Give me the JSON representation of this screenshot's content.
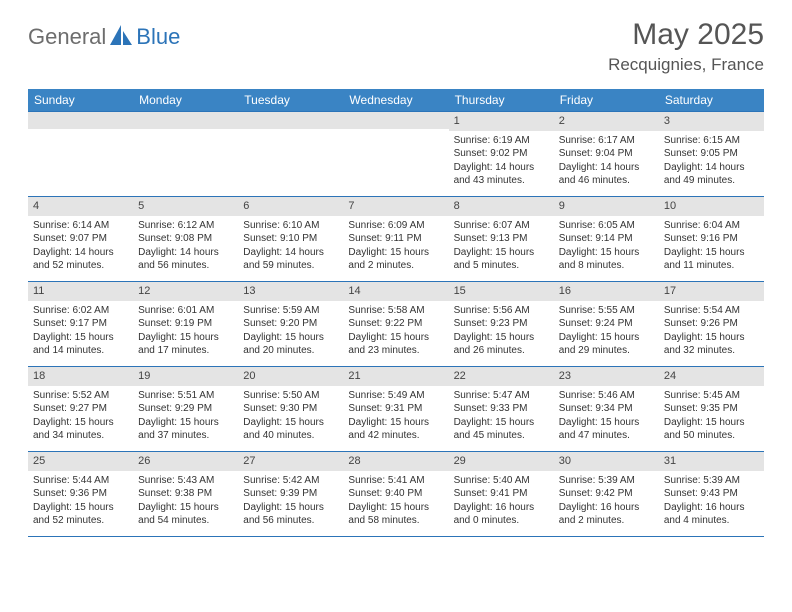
{
  "brand": {
    "part1": "General",
    "part2": "Blue"
  },
  "title": "May 2025",
  "location": "Recquignies, France",
  "accent_color": "#3a84c4",
  "rule_color": "#2c74b8",
  "band_color": "#e4e4e4",
  "weekdays": [
    "Sunday",
    "Monday",
    "Tuesday",
    "Wednesday",
    "Thursday",
    "Friday",
    "Saturday"
  ],
  "weeks": [
    [
      {
        "n": "",
        "sr": "",
        "ss": "",
        "d1": "",
        "d2": ""
      },
      {
        "n": "",
        "sr": "",
        "ss": "",
        "d1": "",
        "d2": ""
      },
      {
        "n": "",
        "sr": "",
        "ss": "",
        "d1": "",
        "d2": ""
      },
      {
        "n": "",
        "sr": "",
        "ss": "",
        "d1": "",
        "d2": ""
      },
      {
        "n": "1",
        "sr": "Sunrise: 6:19 AM",
        "ss": "Sunset: 9:02 PM",
        "d1": "Daylight: 14 hours",
        "d2": "and 43 minutes."
      },
      {
        "n": "2",
        "sr": "Sunrise: 6:17 AM",
        "ss": "Sunset: 9:04 PM",
        "d1": "Daylight: 14 hours",
        "d2": "and 46 minutes."
      },
      {
        "n": "3",
        "sr": "Sunrise: 6:15 AM",
        "ss": "Sunset: 9:05 PM",
        "d1": "Daylight: 14 hours",
        "d2": "and 49 minutes."
      }
    ],
    [
      {
        "n": "4",
        "sr": "Sunrise: 6:14 AM",
        "ss": "Sunset: 9:07 PM",
        "d1": "Daylight: 14 hours",
        "d2": "and 52 minutes."
      },
      {
        "n": "5",
        "sr": "Sunrise: 6:12 AM",
        "ss": "Sunset: 9:08 PM",
        "d1": "Daylight: 14 hours",
        "d2": "and 56 minutes."
      },
      {
        "n": "6",
        "sr": "Sunrise: 6:10 AM",
        "ss": "Sunset: 9:10 PM",
        "d1": "Daylight: 14 hours",
        "d2": "and 59 minutes."
      },
      {
        "n": "7",
        "sr": "Sunrise: 6:09 AM",
        "ss": "Sunset: 9:11 PM",
        "d1": "Daylight: 15 hours",
        "d2": "and 2 minutes."
      },
      {
        "n": "8",
        "sr": "Sunrise: 6:07 AM",
        "ss": "Sunset: 9:13 PM",
        "d1": "Daylight: 15 hours",
        "d2": "and 5 minutes."
      },
      {
        "n": "9",
        "sr": "Sunrise: 6:05 AM",
        "ss": "Sunset: 9:14 PM",
        "d1": "Daylight: 15 hours",
        "d2": "and 8 minutes."
      },
      {
        "n": "10",
        "sr": "Sunrise: 6:04 AM",
        "ss": "Sunset: 9:16 PM",
        "d1": "Daylight: 15 hours",
        "d2": "and 11 minutes."
      }
    ],
    [
      {
        "n": "11",
        "sr": "Sunrise: 6:02 AM",
        "ss": "Sunset: 9:17 PM",
        "d1": "Daylight: 15 hours",
        "d2": "and 14 minutes."
      },
      {
        "n": "12",
        "sr": "Sunrise: 6:01 AM",
        "ss": "Sunset: 9:19 PM",
        "d1": "Daylight: 15 hours",
        "d2": "and 17 minutes."
      },
      {
        "n": "13",
        "sr": "Sunrise: 5:59 AM",
        "ss": "Sunset: 9:20 PM",
        "d1": "Daylight: 15 hours",
        "d2": "and 20 minutes."
      },
      {
        "n": "14",
        "sr": "Sunrise: 5:58 AM",
        "ss": "Sunset: 9:22 PM",
        "d1": "Daylight: 15 hours",
        "d2": "and 23 minutes."
      },
      {
        "n": "15",
        "sr": "Sunrise: 5:56 AM",
        "ss": "Sunset: 9:23 PM",
        "d1": "Daylight: 15 hours",
        "d2": "and 26 minutes."
      },
      {
        "n": "16",
        "sr": "Sunrise: 5:55 AM",
        "ss": "Sunset: 9:24 PM",
        "d1": "Daylight: 15 hours",
        "d2": "and 29 minutes."
      },
      {
        "n": "17",
        "sr": "Sunrise: 5:54 AM",
        "ss": "Sunset: 9:26 PM",
        "d1": "Daylight: 15 hours",
        "d2": "and 32 minutes."
      }
    ],
    [
      {
        "n": "18",
        "sr": "Sunrise: 5:52 AM",
        "ss": "Sunset: 9:27 PM",
        "d1": "Daylight: 15 hours",
        "d2": "and 34 minutes."
      },
      {
        "n": "19",
        "sr": "Sunrise: 5:51 AM",
        "ss": "Sunset: 9:29 PM",
        "d1": "Daylight: 15 hours",
        "d2": "and 37 minutes."
      },
      {
        "n": "20",
        "sr": "Sunrise: 5:50 AM",
        "ss": "Sunset: 9:30 PM",
        "d1": "Daylight: 15 hours",
        "d2": "and 40 minutes."
      },
      {
        "n": "21",
        "sr": "Sunrise: 5:49 AM",
        "ss": "Sunset: 9:31 PM",
        "d1": "Daylight: 15 hours",
        "d2": "and 42 minutes."
      },
      {
        "n": "22",
        "sr": "Sunrise: 5:47 AM",
        "ss": "Sunset: 9:33 PM",
        "d1": "Daylight: 15 hours",
        "d2": "and 45 minutes."
      },
      {
        "n": "23",
        "sr": "Sunrise: 5:46 AM",
        "ss": "Sunset: 9:34 PM",
        "d1": "Daylight: 15 hours",
        "d2": "and 47 minutes."
      },
      {
        "n": "24",
        "sr": "Sunrise: 5:45 AM",
        "ss": "Sunset: 9:35 PM",
        "d1": "Daylight: 15 hours",
        "d2": "and 50 minutes."
      }
    ],
    [
      {
        "n": "25",
        "sr": "Sunrise: 5:44 AM",
        "ss": "Sunset: 9:36 PM",
        "d1": "Daylight: 15 hours",
        "d2": "and 52 minutes."
      },
      {
        "n": "26",
        "sr": "Sunrise: 5:43 AM",
        "ss": "Sunset: 9:38 PM",
        "d1": "Daylight: 15 hours",
        "d2": "and 54 minutes."
      },
      {
        "n": "27",
        "sr": "Sunrise: 5:42 AM",
        "ss": "Sunset: 9:39 PM",
        "d1": "Daylight: 15 hours",
        "d2": "and 56 minutes."
      },
      {
        "n": "28",
        "sr": "Sunrise: 5:41 AM",
        "ss": "Sunset: 9:40 PM",
        "d1": "Daylight: 15 hours",
        "d2": "and 58 minutes."
      },
      {
        "n": "29",
        "sr": "Sunrise: 5:40 AM",
        "ss": "Sunset: 9:41 PM",
        "d1": "Daylight: 16 hours",
        "d2": "and 0 minutes."
      },
      {
        "n": "30",
        "sr": "Sunrise: 5:39 AM",
        "ss": "Sunset: 9:42 PM",
        "d1": "Daylight: 16 hours",
        "d2": "and 2 minutes."
      },
      {
        "n": "31",
        "sr": "Sunrise: 5:39 AM",
        "ss": "Sunset: 9:43 PM",
        "d1": "Daylight: 16 hours",
        "d2": "and 4 minutes."
      }
    ]
  ]
}
